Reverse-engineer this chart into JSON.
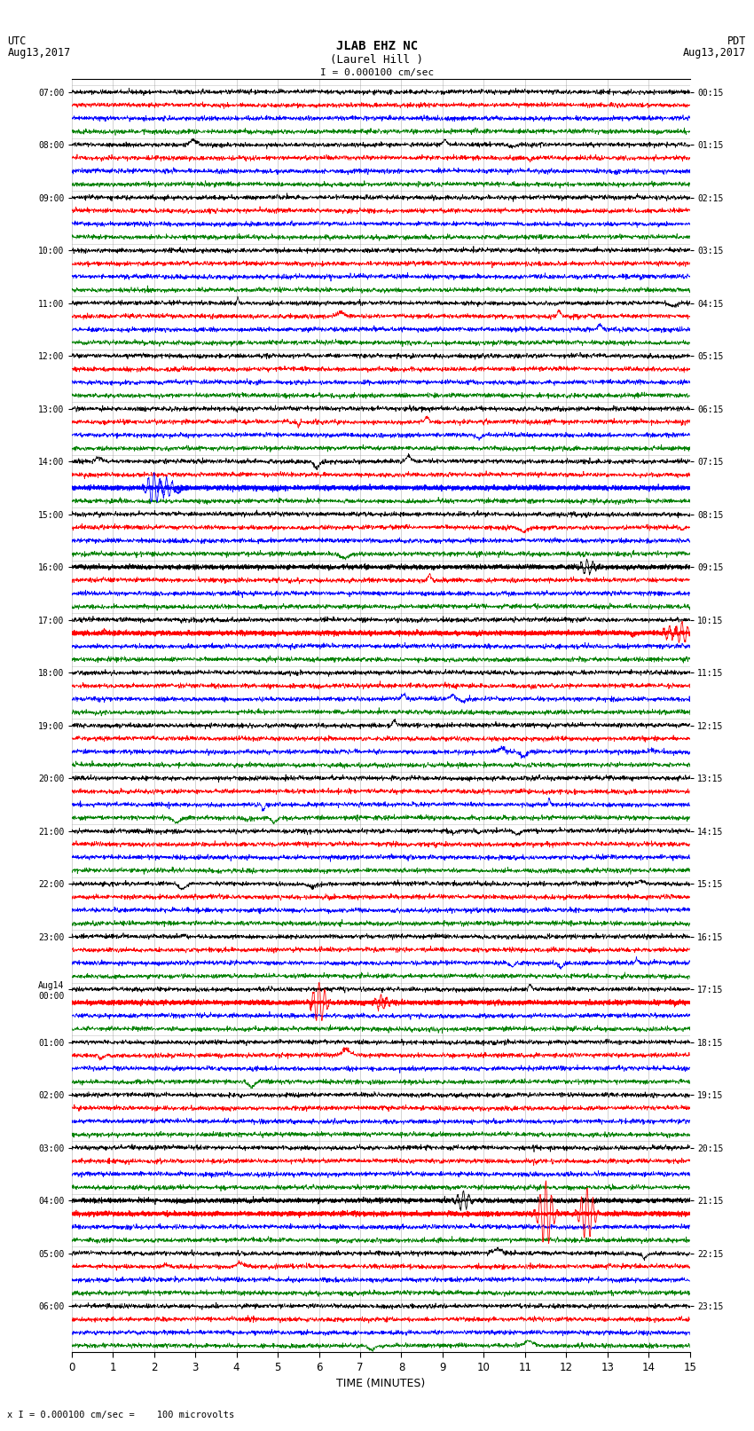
{
  "title_line1": "JLAB EHZ NC",
  "title_line2": "(Laurel Hill )",
  "scale_label": "I = 0.000100 cm/sec",
  "left_header_line1": "UTC",
  "left_header_line2": "Aug13,2017",
  "right_header_line1": "PDT",
  "right_header_line2": "Aug13,2017",
  "bottom_note": "x I = 0.000100 cm/sec =    100 microvolts",
  "xlabel": "TIME (MINUTES)",
  "bg_color": "#ffffff",
  "trace_colors": [
    "black",
    "red",
    "blue",
    "green"
  ],
  "left_times": [
    "07:00",
    "08:00",
    "09:00",
    "10:00",
    "11:00",
    "12:00",
    "13:00",
    "14:00",
    "15:00",
    "16:00",
    "17:00",
    "18:00",
    "19:00",
    "20:00",
    "21:00",
    "22:00",
    "23:00",
    "Aug14\n00:00",
    "01:00",
    "02:00",
    "03:00",
    "04:00",
    "05:00",
    "06:00"
  ],
  "right_times": [
    "00:15",
    "01:15",
    "02:15",
    "03:15",
    "04:15",
    "05:15",
    "06:15",
    "07:15",
    "08:15",
    "09:15",
    "10:15",
    "11:15",
    "12:15",
    "13:15",
    "14:15",
    "15:15",
    "16:15",
    "17:15",
    "18:15",
    "19:15",
    "20:15",
    "21:15",
    "22:15",
    "23:15"
  ],
  "n_rows": 24,
  "n_traces_per_row": 4,
  "minutes": 15,
  "noise_scale": 0.08,
  "xticks": [
    0,
    1,
    2,
    3,
    4,
    5,
    6,
    7,
    8,
    9,
    10,
    11,
    12,
    13,
    14,
    15
  ]
}
